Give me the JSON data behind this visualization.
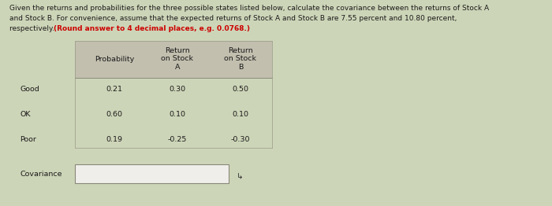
{
  "title_lines": [
    "Given the returns and probabilities for the three possible states listed below, calculate the covariance between the returns of Stock A",
    "and Stock B. For convenience, assume that the expected returns of Stock A and Stock B are 7.55 percent and 10.80 percent,",
    "respectively. "
  ],
  "bold_part": "(Round answer to 4 decimal places, e.g. 0.0768.)",
  "header_row": [
    "",
    "Probability",
    "Return\non Stock\nA",
    "Return\non Stock\nB"
  ],
  "data_rows": [
    [
      "Good",
      "0.21",
      "0.30",
      "0.50"
    ],
    [
      "OK",
      "0.60",
      "0.10",
      "0.10"
    ],
    [
      "Poor",
      "0.19",
      "-0.25",
      "-0.30"
    ]
  ],
  "covariance_label": "Covariance",
  "bg_color": "#cdd5b8",
  "header_bg": "#c2bfaf",
  "input_box_color": "#f0eeea",
  "text_color": "#1a1a1a",
  "title_color": "#1a1a1a",
  "bold_color": "#cc0000",
  "fig_width": 7.0,
  "fig_height": 2.62,
  "dpi": 100
}
